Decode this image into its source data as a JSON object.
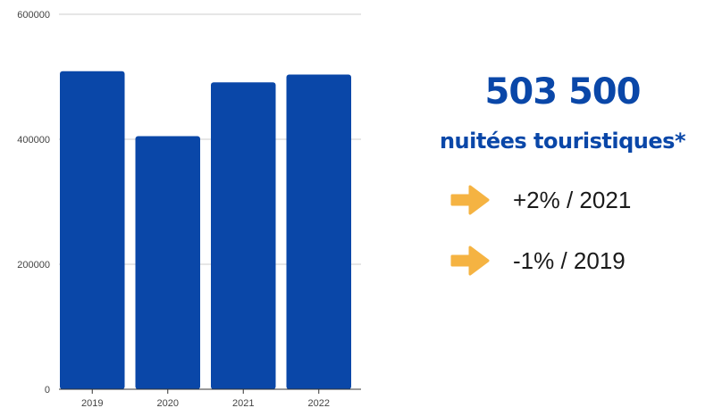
{
  "chart_data": {
    "type": "bar",
    "categories": [
      "2019",
      "2020",
      "2021",
      "2022"
    ],
    "values": [
      509000,
      405000,
      491000,
      503500
    ],
    "ylim": [
      0,
      600000
    ],
    "yticks": [
      0,
      200000,
      400000,
      600000
    ],
    "ytick_labels": [
      "0",
      "200000",
      "400000",
      "600000"
    ],
    "grid": true,
    "bar_color": "#0a47a8"
  },
  "headline": {
    "value": "503 500",
    "label": "nuitées touristiques*"
  },
  "stats": [
    {
      "text": "+2% / 2021",
      "icon": "arrow-right-icon"
    },
    {
      "text": "-1% / 2019",
      "icon": "arrow-right-icon"
    }
  ],
  "accent_color": "#0a47a8",
  "arrow_color": "#f5b342"
}
